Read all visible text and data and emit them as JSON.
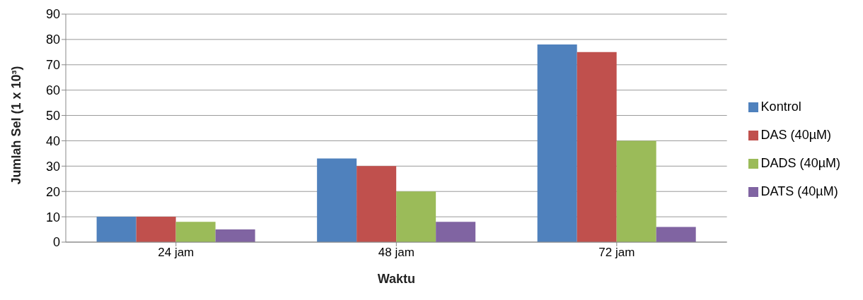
{
  "chart_data": {
    "type": "bar",
    "xlabel": "Waktu",
    "ylabel": "Jumlah Sel (1 x 10³)",
    "categories": [
      "24 jam",
      "48 jam",
      "72 jam"
    ],
    "series": [
      {
        "name": "Kontrol",
        "color": "#4f81bd",
        "values": [
          10,
          33,
          78
        ]
      },
      {
        "name": "DAS (40µM)",
        "color": "#c0504d",
        "values": [
          10,
          30,
          75
        ]
      },
      {
        "name": "DADS (40µM)",
        "color": "#9bbb59",
        "values": [
          8,
          20,
          40
        ]
      },
      {
        "name": "DATS (40µM)",
        "color": "#8064a2",
        "values": [
          5,
          8,
          6
        ]
      }
    ],
    "ylim": [
      0,
      90
    ],
    "yticks": [
      0,
      10,
      20,
      30,
      40,
      50,
      60,
      70,
      80,
      90
    ],
    "grid": "y",
    "legend": "right"
  }
}
